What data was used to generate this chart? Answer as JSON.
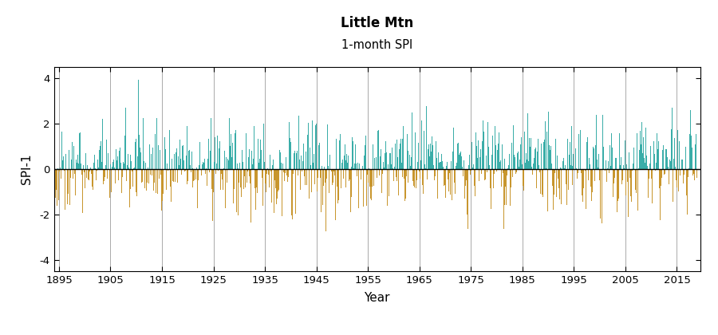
{
  "title": "Little Mtn",
  "subtitle": "1-month SPI",
  "xlabel": "Year",
  "ylabel": "SPI-1",
  "ylim": [
    -4.5,
    4.5
  ],
  "yticks": [
    -4,
    -2,
    0,
    2,
    4
  ],
  "year_start": 1893,
  "year_end": 2019,
  "xticks": [
    1895,
    1905,
    1915,
    1925,
    1935,
    1945,
    1955,
    1965,
    1975,
    1985,
    1995,
    2005,
    2015
  ],
  "color_positive": "#3aada8",
  "color_negative": "#c8962e",
  "color_zero_line": "black",
  "color_grid": "#aaaaaa",
  "tick_label_color": "#cc3300",
  "axis_label_color": "black",
  "title_color": "black",
  "background_color": "white",
  "seed": 42
}
